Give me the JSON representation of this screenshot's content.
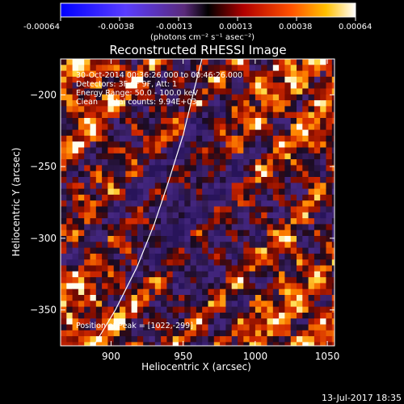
{
  "colorbar": {
    "ticks": [
      "-0.00064",
      "-0.00038",
      "-0.00013",
      "0.00013",
      "0.00038",
      "0.00064"
    ],
    "units": "(photons cm⁻² s⁻¹ asec⁻²)"
  },
  "chart_data": {
    "type": "heatmap",
    "title": "Reconstructed RHESSI Image",
    "xlabel": "Heliocentric X (arcsec)",
    "ylabel": "Heliocentric Y (arcsec)",
    "xlim": [
      865,
      1055
    ],
    "ylim": [
      -375,
      -175
    ],
    "xticks": [
      900,
      950,
      1000,
      1050
    ],
    "yticks": [
      -200,
      -250,
      -300,
      -350
    ],
    "xtick_labels": [
      "900",
      "950",
      "1000",
      "1050"
    ],
    "ytick_labels": [
      "−200",
      "−250",
      "−300",
      "−350"
    ],
    "colorbar_range": [
      -0.00064,
      0.00064
    ],
    "annotations": [
      "30-Oct-2014 00:36:26.000 to 00:46:26.000",
      "Detectors: 3F 6F 9F, Att: 1",
      "Energy Range: 50.0 - 100.0 keV",
      "Clean    Total counts: 9.94E+03"
    ],
    "peak_label": "Position of Peak = [1022,-299]",
    "peak": [
      1022,
      -299
    ],
    "limb_curve": [
      [
        888,
        -375
      ],
      [
        903,
        -350
      ],
      [
        918,
        -320
      ],
      [
        930,
        -290
      ],
      [
        940,
        -260
      ],
      [
        950,
        -228
      ],
      [
        958,
        -195
      ],
      [
        963,
        -175
      ]
    ]
  },
  "footer": {
    "date": "13-Jul-2017 18:35"
  }
}
